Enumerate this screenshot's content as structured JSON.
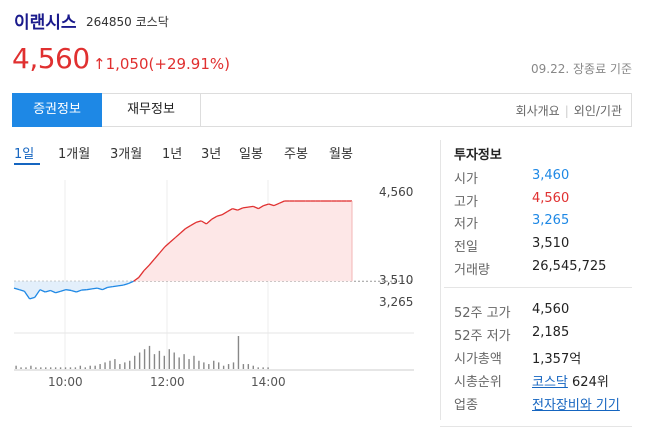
{
  "header": {
    "name": "이랜시스",
    "code": "264850",
    "market": "코스닥",
    "price": "4,560",
    "arrow": "↑",
    "change": "1,050(+29.91%)",
    "as_of": "09.22. 장종료 기준"
  },
  "tabs": {
    "active": "증권정보",
    "inactive": "재무정보",
    "links": [
      "회사개요",
      "외인/기관"
    ]
  },
  "periods": [
    "1일",
    "1개월",
    "3개월",
    "1년",
    "3년",
    "일봉",
    "주봉",
    "월봉"
  ],
  "chart_data": {
    "type": "line",
    "title": "",
    "xlabel": "",
    "ylabel": "",
    "x_ticks": [
      "10:00",
      "12:00",
      "14:00"
    ],
    "y_labels": [
      "4,560",
      "3,510",
      "3,265"
    ],
    "prev_close": 3510,
    "ylim": [
      3265,
      4560
    ],
    "series": [
      {
        "values": [
          3420,
          3400,
          3380,
          3280,
          3300,
          3400,
          3370,
          3390,
          3360,
          3380,
          3400,
          3390,
          3370,
          3395,
          3400,
          3410,
          3420,
          3400,
          3430,
          3440,
          3450,
          3460,
          3480,
          3510,
          3560,
          3650,
          3720,
          3800,
          3880,
          3960,
          4020,
          4080,
          4140,
          4200,
          4240,
          4280,
          4300,
          4260,
          4320,
          4360,
          4380,
          4420,
          4460,
          4440,
          4470,
          4480,
          4490,
          4460,
          4500,
          4520,
          4500,
          4530,
          4560,
          4560,
          4560,
          4560,
          4560,
          4560,
          4560,
          4560,
          4560,
          4560,
          4560,
          4560,
          4560,
          4560
        ]
      }
    ],
    "volume": [
      2,
      1,
      1,
      2,
      1,
      1,
      1,
      1,
      1,
      1,
      1,
      1,
      1,
      2,
      1,
      2,
      2,
      3,
      4,
      5,
      6,
      3,
      4,
      5,
      8,
      10,
      12,
      14,
      9,
      11,
      8,
      12,
      10,
      7,
      9,
      6,
      8,
      5,
      4,
      3,
      5,
      4,
      2,
      3,
      4,
      20,
      3,
      3,
      2,
      1,
      1,
      1
    ]
  },
  "invest_info": {
    "title": "투자정보",
    "rows": [
      {
        "label": "시가",
        "value": "3,460",
        "tone": "blue"
      },
      {
        "label": "고가",
        "value": "4,560",
        "tone": "red"
      },
      {
        "label": "저가",
        "value": "3,265",
        "tone": "blue"
      },
      {
        "label": "전일",
        "value": "3,510",
        "tone": "normal"
      },
      {
        "label": "거래량",
        "value": "26,545,725",
        "tone": "normal"
      }
    ],
    "rows2": [
      {
        "label": "52주 고가",
        "value": "4,560"
      },
      {
        "label": "52주 저가",
        "value": "2,185"
      },
      {
        "label": "시가총액",
        "value": "1,357억"
      }
    ],
    "rank": {
      "label": "시총순위",
      "market_link": "코스닥",
      "rank": "624위"
    },
    "sector": {
      "label": "업종",
      "value": "전자장비와 기기"
    }
  },
  "colors": {
    "up": "#e03030",
    "down": "#1e88e5",
    "accent": "#1e88e5"
  }
}
